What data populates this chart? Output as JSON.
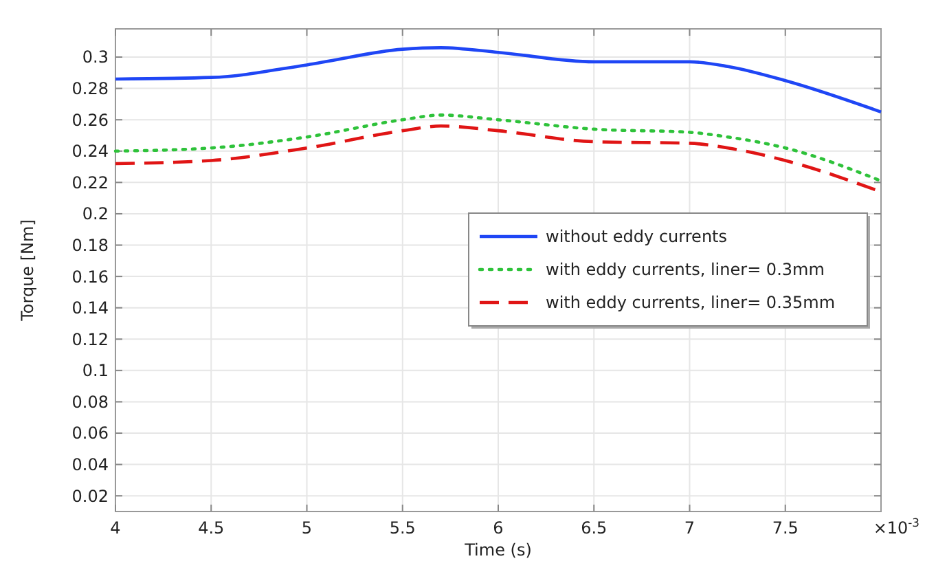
{
  "chart_data": {
    "type": "line",
    "xlabel": "Time (s)",
    "ylabel": "Torque [Nm]",
    "x": [
      4,
      4.5,
      5,
      5.5,
      5.7,
      6,
      6.5,
      7,
      7.2,
      7.5,
      8
    ],
    "series": [
      {
        "name": "without eddy currents",
        "color": "#1f46f5",
        "line_style": "solid",
        "values": [
          0.286,
          0.287,
          0.295,
          0.305,
          0.306,
          0.303,
          0.297,
          0.297,
          0.294,
          0.285,
          0.265
        ]
      },
      {
        "name": "with eddy currents, liner= 0.3mm",
        "color": "#2ec23a",
        "line_style": "dotted",
        "values": [
          0.24,
          0.242,
          0.249,
          0.26,
          0.263,
          0.26,
          0.254,
          0.252,
          0.249,
          0.242,
          0.221
        ]
      },
      {
        "name": "with eddy currents, liner= 0.35mm",
        "color": "#e01515",
        "line_style": "dashed",
        "values": [
          0.232,
          0.234,
          0.242,
          0.253,
          0.256,
          0.253,
          0.246,
          0.245,
          0.242,
          0.234,
          0.214
        ]
      }
    ],
    "xlim": [
      4,
      8
    ],
    "ylim": [
      0.01,
      0.318
    ],
    "xticks": [
      4,
      4.5,
      5,
      5.5,
      6,
      6.5,
      7,
      7.5
    ],
    "yticks": [
      0.02,
      0.04,
      0.06,
      0.08,
      0.1,
      0.12,
      0.14,
      0.16,
      0.18,
      0.2,
      0.22,
      0.24,
      0.26,
      0.28,
      0.3
    ],
    "annotations": [
      "×10$^{-3}$"
    ],
    "grid": true,
    "legend": "right"
  }
}
